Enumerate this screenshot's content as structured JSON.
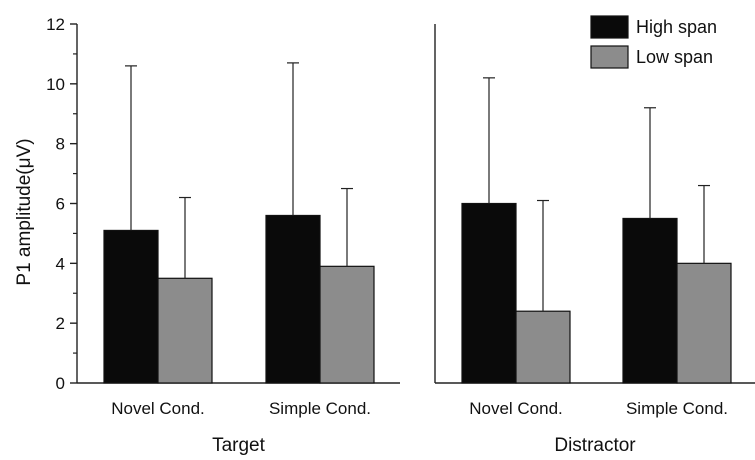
{
  "chart_data": {
    "type": "bar",
    "title": "",
    "xlabel": "",
    "ylabel": "P1 amplitude(μV)",
    "ylim": [
      0,
      12
    ],
    "yticks": [
      "0",
      "2",
      "4",
      "6",
      "8",
      "10",
      "12"
    ],
    "grid": false,
    "legend_position": "top-right",
    "groups": [
      {
        "label": "Target",
        "categories": [
          "Novel Cond.",
          "Simple Cond."
        ]
      },
      {
        "label": "Distractor",
        "categories": [
          "Novel Cond.",
          "Simple Cond."
        ]
      }
    ],
    "series": [
      {
        "name": "High span",
        "color": "#0a0a0a",
        "values": [
          5.1,
          5.6,
          6.0,
          5.5
        ],
        "error_upper": [
          10.6,
          10.7,
          10.2,
          9.2
        ]
      },
      {
        "name": "Low span",
        "color": "#8c8c8c",
        "values": [
          3.5,
          3.9,
          2.4,
          4.0
        ],
        "error_upper": [
          6.2,
          6.5,
          6.1,
          6.6
        ]
      }
    ]
  }
}
